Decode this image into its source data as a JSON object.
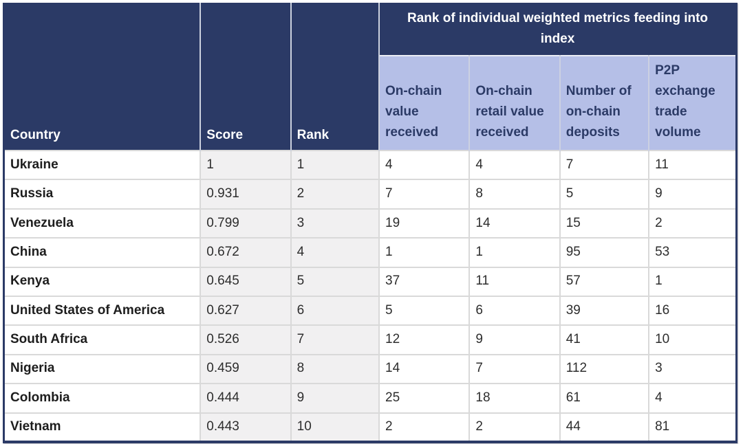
{
  "chart_data": {
    "type": "table",
    "title": "",
    "group_header": "Rank of individual weighted metrics feeding into index",
    "columns": [
      "Country",
      "Score",
      "Rank",
      "On-chain value received",
      "On-chain retail value received",
      "Number of on-chain deposits",
      "P2P exchange trade volume"
    ],
    "rows": [
      [
        "Ukraine",
        "1",
        "1",
        "4",
        "4",
        "7",
        "11"
      ],
      [
        "Russia",
        "0.931",
        "2",
        "7",
        "8",
        "5",
        "9"
      ],
      [
        "Venezuela",
        "0.799",
        "3",
        "19",
        "14",
        "15",
        "2"
      ],
      [
        "China",
        "0.672",
        "4",
        "1",
        "1",
        "95",
        "53"
      ],
      [
        "Kenya",
        "0.645",
        "5",
        "37",
        "11",
        "57",
        "1"
      ],
      [
        "United States of America",
        "0.627",
        "6",
        "5",
        "6",
        "39",
        "16"
      ],
      [
        "South Africa",
        "0.526",
        "7",
        "12",
        "9",
        "41",
        "10"
      ],
      [
        "Nigeria",
        "0.459",
        "8",
        "14",
        "7",
        "112",
        "3"
      ],
      [
        "Colombia",
        "0.444",
        "9",
        "25",
        "18",
        "61",
        "4"
      ],
      [
        "Vietnam",
        "0.443",
        "10",
        "2",
        "2",
        "44",
        "81"
      ]
    ]
  },
  "colors": {
    "header_bg": "#2b3a66",
    "subheader_bg": "#b5bfe7",
    "alt_cell_bg": "#f1f0f1",
    "grid_line": "#d9d9d9",
    "header_text": "#ffffff",
    "subheader_text": "#2b3a66",
    "body_text": "#2d2d2d"
  }
}
